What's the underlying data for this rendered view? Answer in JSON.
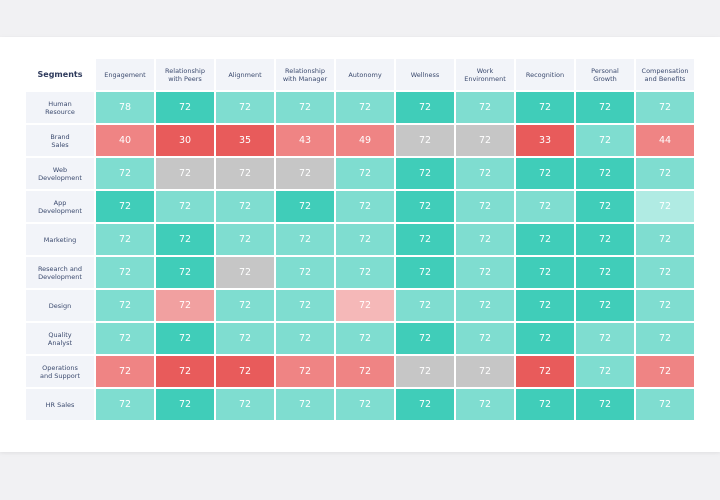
{
  "chart_data": {
    "type": "heatmap",
    "corner_label": "Segments",
    "columns": [
      [
        "Engagement"
      ],
      [
        "Relationship",
        "with Peers"
      ],
      [
        "Alignment"
      ],
      [
        "Relationship",
        "with Manager"
      ],
      [
        "Autonomy"
      ],
      [
        "Wellness"
      ],
      [
        "Work",
        "Environment"
      ],
      [
        "Recognition"
      ],
      [
        "Personal",
        "Growth"
      ],
      [
        "Compensation",
        "and Benefits"
      ]
    ],
    "rows": [
      {
        "segment": [
          "Human",
          "Resource"
        ],
        "values": [
          78,
          72,
          72,
          72,
          72,
          72,
          72,
          72,
          72,
          72
        ],
        "levels": [
          "L",
          "M",
          "L",
          "L",
          "L",
          "M",
          "L",
          "M",
          "M",
          "L"
        ]
      },
      {
        "segment": [
          "Brand",
          "Sales"
        ],
        "values": [
          40,
          30,
          35,
          43,
          49,
          72,
          72,
          33,
          72,
          44
        ],
        "levels": [
          "RM",
          "RS",
          "RS",
          "RM",
          "RM",
          "G",
          "G",
          "RS",
          "L",
          "RM"
        ]
      },
      {
        "segment": [
          "Web",
          "Development"
        ],
        "values": [
          72,
          72,
          72,
          72,
          72,
          72,
          72,
          72,
          72,
          72
        ],
        "levels": [
          "L",
          "G",
          "G",
          "G",
          "L",
          "M",
          "L",
          "M",
          "M",
          "L"
        ]
      },
      {
        "segment": [
          "App",
          "Development"
        ],
        "values": [
          72,
          72,
          72,
          72,
          72,
          72,
          72,
          72,
          72,
          72
        ],
        "levels": [
          "M",
          "L",
          "L",
          "M",
          "L",
          "M",
          "L",
          "L",
          "M",
          "XL"
        ]
      },
      {
        "segment": [
          "Marketing"
        ],
        "values": [
          72,
          72,
          72,
          72,
          72,
          72,
          72,
          72,
          72,
          72
        ],
        "levels": [
          "L",
          "M",
          "L",
          "L",
          "L",
          "M",
          "L",
          "M",
          "M",
          "L"
        ]
      },
      {
        "segment": [
          "Research and",
          "Development"
        ],
        "values": [
          72,
          72,
          72,
          72,
          72,
          72,
          72,
          72,
          72,
          72
        ],
        "levels": [
          "L",
          "M",
          "G",
          "L",
          "L",
          "M",
          "L",
          "M",
          "M",
          "L"
        ]
      },
      {
        "segment": [
          "Design"
        ],
        "values": [
          72,
          72,
          72,
          72,
          72,
          72,
          72,
          72,
          72,
          72
        ],
        "levels": [
          "L",
          "RL",
          "L",
          "L",
          "RXL",
          "L",
          "L",
          "M",
          "M",
          "L"
        ]
      },
      {
        "segment": [
          "Quality",
          "Analyst"
        ],
        "values": [
          72,
          72,
          72,
          72,
          72,
          72,
          72,
          72,
          72,
          72
        ],
        "levels": [
          "L",
          "M",
          "L",
          "L",
          "L",
          "M",
          "L",
          "M",
          "L",
          "L"
        ]
      },
      {
        "segment": [
          "Operations",
          "and Support"
        ],
        "values": [
          72,
          72,
          72,
          72,
          72,
          72,
          72,
          72,
          72,
          72
        ],
        "levels": [
          "RM",
          "RS",
          "RS",
          "RM",
          "RM",
          "G",
          "G",
          "RS",
          "L",
          "RM"
        ]
      },
      {
        "segment": [
          "HR Sales"
        ],
        "values": [
          72,
          72,
          72,
          72,
          72,
          72,
          72,
          72,
          72,
          72
        ],
        "levels": [
          "L",
          "M",
          "L",
          "L",
          "L",
          "M",
          "L",
          "M",
          "M",
          "L"
        ]
      }
    ],
    "palette": {
      "M": "#40cdb9",
      "L": "#7fddd0",
      "XL": "#b0ebe3",
      "G": "#c6c6c6",
      "RS": "#e85b5b",
      "RM": "#ef8484",
      "RL": "#f1a0a0",
      "RXL": "#f5b8b8"
    }
  }
}
